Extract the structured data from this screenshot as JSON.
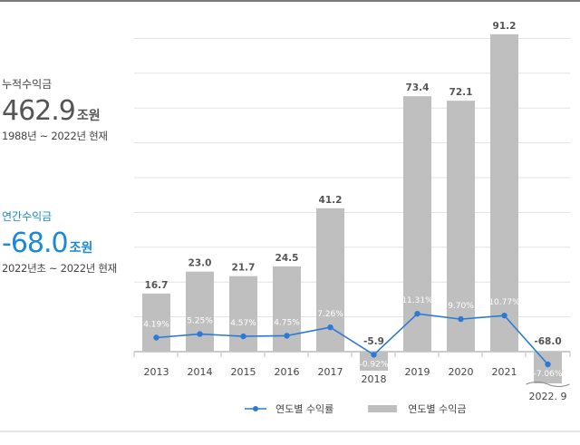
{
  "cumulative": {
    "label": "누적수익금",
    "value": "462.9",
    "unit": "조원",
    "period": "1988년 ~ 2022년 현재"
  },
  "annual": {
    "label": "연간수익금",
    "value": "-68.0",
    "unit": "조원",
    "period": "2022년초 ~ 2022년 현재"
  },
  "colors": {
    "bar": "#bfbfbf",
    "line": "#2b7bd6",
    "accent": "#1a8ad4"
  },
  "chart_data": {
    "type": "bar+line",
    "categories": [
      "2013",
      "2014",
      "2015",
      "2016",
      "2017",
      "2018",
      "2019",
      "2020",
      "2021",
      "2022. 9"
    ],
    "series": [
      {
        "name": "연도별 수익금",
        "type": "bar",
        "values": [
          16.7,
          23.0,
          21.7,
          24.5,
          41.2,
          -5.9,
          73.4,
          72.1,
          91.2,
          -68.0
        ],
        "labels": [
          "16.7",
          "23.0",
          "21.7",
          "24.5",
          "41.2",
          "-5.9",
          "73.4",
          "72.1",
          "91.2",
          "-68.0"
        ]
      },
      {
        "name": "연도별 수익률",
        "type": "line",
        "values": [
          4.19,
          5.25,
          4.57,
          4.75,
          7.26,
          -0.92,
          11.31,
          9.7,
          10.77,
          -7.06
        ],
        "labels": [
          "4.19%",
          "5.25%",
          "4.57%",
          "4.75%",
          "7.26%",
          "-0.92%",
          "11.31%",
          "9.70%",
          "10.77%",
          "-7.06%"
        ]
      }
    ],
    "grid": true,
    "legend": "bottom"
  }
}
